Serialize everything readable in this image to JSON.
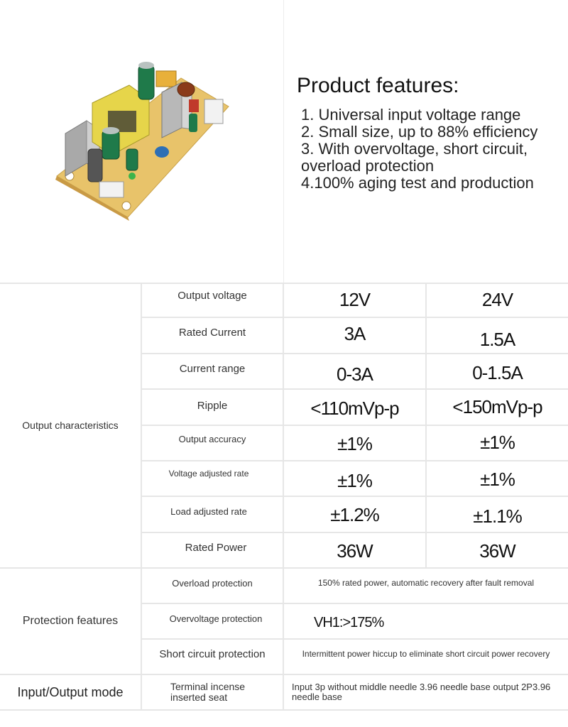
{
  "features": {
    "title": "Product features:",
    "lines": [
      "1. Universal input voltage range",
      "2. Small size, up to 88% efficiency",
      "3. With overvoltage, short circuit,",
      "overload protection",
      "4.100% aging test and production"
    ]
  },
  "table": {
    "output_group": "Output characteristics",
    "protection_group": "Protection features",
    "io_group": "Input/Output mode",
    "rows": [
      {
        "label": "Output voltage",
        "v12": "12V",
        "v24": "24V"
      },
      {
        "label": "Rated Current",
        "v12": "3A",
        "v24": "1.5A"
      },
      {
        "label": "Current range",
        "v12": "0-3A",
        "v24": "0-1.5A"
      },
      {
        "label": "Ripple",
        "v12": "<110mVp-p",
        "v24": "<150mVp-p"
      },
      {
        "label": "Output accuracy",
        "v12": "±1%",
        "v24": "±1%"
      },
      {
        "label": "Voltage adjusted rate",
        "v12": "±1%",
        "v24": "±1%"
      },
      {
        "label": "Load adjusted rate",
        "v12": "±1.2%",
        "v24": "±1.1%"
      },
      {
        "label": "Rated Power",
        "v12": "36W",
        "v24": "36W"
      }
    ],
    "protection": [
      {
        "label": "Overload protection",
        "value": "150% rated power, automatic recovery after fault removal"
      },
      {
        "label": "Overvoltage protection",
        "value": "VH1:>175%"
      },
      {
        "label": "Short circuit protection",
        "value": "Intermittent power hiccup to eliminate short circuit power recovery"
      }
    ],
    "io": {
      "label": "Terminal incense inserted seat",
      "value": "Input 3p without middle needle 3.96 needle base output 2P3.96 needle base"
    }
  },
  "colors": {
    "pcb": "#e8c36a",
    "transformer": "#e6d54a",
    "capacitor": "#1f7a4a",
    "heatsink": "#b8b8b8",
    "grid_line": "#e6e6e6"
  }
}
